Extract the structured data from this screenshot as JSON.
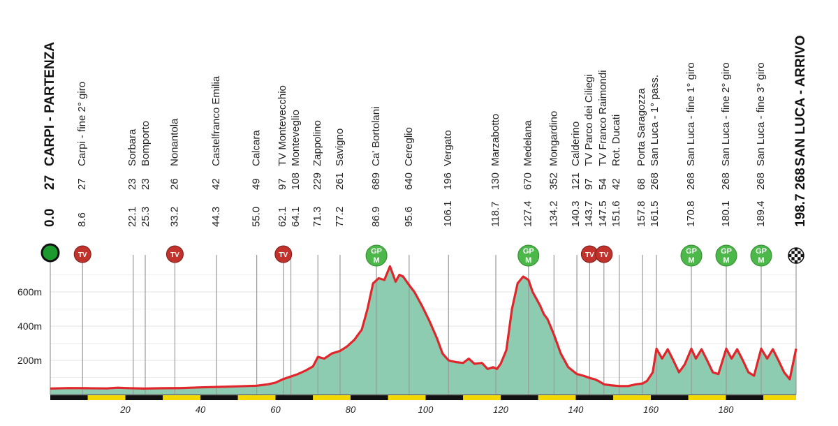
{
  "chart_data": {
    "type": "area",
    "ylabels": [
      "600m",
      "400m",
      "200m"
    ],
    "yticks": [
      600,
      400,
      200
    ],
    "xticks": [
      20,
      40,
      60,
      80,
      100,
      120,
      140,
      160,
      180
    ],
    "xlim": [
      0,
      198.7
    ],
    "ylim": [
      0,
      800
    ],
    "start": {
      "km": "0.0",
      "alt": "27",
      "name": "CARPI - PARTENZA"
    },
    "finish": {
      "km": "198.7",
      "alt": "268",
      "name": "SAN LUCA - ARRIVO"
    },
    "waypoints": [
      {
        "km": 8.6,
        "lines": [
          {
            "km": "8.6",
            "alt": "27",
            "name": "Carpi - fine 2° giro"
          }
        ],
        "badge": "tv"
      },
      {
        "km": 22.1,
        "lines": [
          {
            "km": "22.1",
            "alt": "23",
            "name": "Sorbara"
          },
          {
            "km": "25.3",
            "alt": "23",
            "name": "Bomporto"
          }
        ],
        "badge": null
      },
      {
        "km": 33.2,
        "lines": [
          {
            "km": "33.2",
            "alt": "26",
            "name": "Nonantola"
          }
        ],
        "badge": "tv"
      },
      {
        "km": 44.3,
        "lines": [
          {
            "km": "44.3",
            "alt": "42",
            "name": "Castelfranco Emilia"
          }
        ],
        "badge": null
      },
      {
        "km": 55.0,
        "lines": [
          {
            "km": "55.0",
            "alt": "49",
            "name": "Calcara"
          }
        ],
        "badge": null
      },
      {
        "km": 62.1,
        "lines": [
          {
            "km": "62.1",
            "alt": "97",
            "name": "TV Montevecchio"
          },
          {
            "km": "64.1",
            "alt": "108",
            "name": "Monteveglio"
          }
        ],
        "badge": "tv"
      },
      {
        "km": 71.3,
        "lines": [
          {
            "km": "71.3",
            "alt": "229",
            "name": "Zappolino"
          }
        ],
        "badge": null
      },
      {
        "km": 77.2,
        "lines": [
          {
            "km": "77.2",
            "alt": "261",
            "name": "Savigno"
          }
        ],
        "badge": null
      },
      {
        "km": 86.9,
        "lines": [
          {
            "km": "86.9",
            "alt": "689",
            "name": "Ca' Bortolani"
          }
        ],
        "badge": "gpm"
      },
      {
        "km": 95.6,
        "lines": [
          {
            "km": "95.6",
            "alt": "640",
            "name": "Cereglio"
          }
        ],
        "badge": null
      },
      {
        "km": 106.1,
        "lines": [
          {
            "km": "106.1",
            "alt": "196",
            "name": "Vergato"
          }
        ],
        "badge": null
      },
      {
        "km": 118.7,
        "lines": [
          {
            "km": "118.7",
            "alt": "130",
            "name": "Marzabotto"
          }
        ],
        "badge": null
      },
      {
        "km": 127.4,
        "lines": [
          {
            "km": "127.4",
            "alt": "670",
            "name": "Medelana"
          }
        ],
        "badge": "gpm"
      },
      {
        "km": 134.2,
        "lines": [
          {
            "km": "134.2",
            "alt": "352",
            "name": "Mongardino"
          }
        ],
        "badge": null
      },
      {
        "km": 140.3,
        "lines": [
          {
            "km": "140.3",
            "alt": "121",
            "name": "Calderino"
          },
          {
            "km": "143.7",
            "alt": "97",
            "name": "TV Parco dei Ciliegi"
          }
        ],
        "badge": "tv"
      },
      {
        "km": 147.5,
        "lines": [
          {
            "km": "147.5",
            "alt": "54",
            "name": "TV Franco Raimondi"
          },
          {
            "km": "151.6",
            "alt": "42",
            "name": "Rot. Ducati"
          }
        ],
        "badge": "tv"
      },
      {
        "km": 157.8,
        "lines": [
          {
            "km": "157.8",
            "alt": "68",
            "name": "Porta Saragozza"
          },
          {
            "km": "161.5",
            "alt": "268",
            "name": "San Luca - 1° pass."
          }
        ],
        "badge": null
      },
      {
        "km": 170.8,
        "lines": [
          {
            "km": "170.8",
            "alt": "268",
            "name": "San Luca - fine 1° giro"
          }
        ],
        "badge": "gpm"
      },
      {
        "km": 180.1,
        "lines": [
          {
            "km": "180.1",
            "alt": "268",
            "name": "San Luca - fine 2° giro"
          }
        ],
        "badge": "gpm"
      },
      {
        "km": 189.4,
        "lines": [
          {
            "km": "189.4",
            "alt": "268",
            "name": "San Luca - fine 3° giro"
          }
        ],
        "badge": "gpm"
      }
    ],
    "badge_labels": {
      "tv": "TV",
      "gpm_top": "GP",
      "gpm_bottom": "M"
    },
    "profile": [
      [
        0,
        35
      ],
      [
        5,
        38
      ],
      [
        10,
        37
      ],
      [
        15,
        36
      ],
      [
        18,
        40
      ],
      [
        20,
        38
      ],
      [
        25,
        35
      ],
      [
        30,
        37
      ],
      [
        35,
        38
      ],
      [
        40,
        42
      ],
      [
        45,
        45
      ],
      [
        50,
        48
      ],
      [
        55,
        52
      ],
      [
        58,
        60
      ],
      [
        60,
        70
      ],
      [
        62,
        90
      ],
      [
        64,
        105
      ],
      [
        66,
        120
      ],
      [
        68,
        140
      ],
      [
        70,
        165
      ],
      [
        71.3,
        220
      ],
      [
        73,
        210
      ],
      [
        75,
        240
      ],
      [
        77.2,
        255
      ],
      [
        79,
        280
      ],
      [
        81,
        320
      ],
      [
        83,
        380
      ],
      [
        84.5,
        500
      ],
      [
        86,
        650
      ],
      [
        87.5,
        680
      ],
      [
        89,
        670
      ],
      [
        90.5,
        750
      ],
      [
        92,
        660
      ],
      [
        93,
        700
      ],
      [
        94,
        690
      ],
      [
        95.6,
        640
      ],
      [
        97,
        600
      ],
      [
        99,
        520
      ],
      [
        101,
        430
      ],
      [
        103,
        330
      ],
      [
        104.5,
        240
      ],
      [
        106.1,
        200
      ],
      [
        108,
        190
      ],
      [
        110,
        185
      ],
      [
        111.5,
        210
      ],
      [
        113,
        180
      ],
      [
        115,
        185
      ],
      [
        116.5,
        150
      ],
      [
        118,
        160
      ],
      [
        119,
        150
      ],
      [
        120,
        180
      ],
      [
        121.5,
        260
      ],
      [
        123,
        500
      ],
      [
        124.5,
        650
      ],
      [
        126,
        690
      ],
      [
        127.4,
        670
      ],
      [
        128.5,
        600
      ],
      [
        129.5,
        560
      ],
      [
        130.5,
        520
      ],
      [
        131.5,
        470
      ],
      [
        132.5,
        440
      ],
      [
        134.2,
        350
      ],
      [
        136,
        240
      ],
      [
        138,
        160
      ],
      [
        140.3,
        120
      ],
      [
        142,
        110
      ],
      [
        144,
        95
      ],
      [
        145,
        90
      ],
      [
        146,
        80
      ],
      [
        147.5,
        60
      ],
      [
        149,
        55
      ],
      [
        151.6,
        50
      ],
      [
        154,
        50
      ],
      [
        156,
        60
      ],
      [
        157.8,
        65
      ],
      [
        159,
        80
      ],
      [
        160.5,
        130
      ],
      [
        161.5,
        268
      ],
      [
        163,
        210
      ],
      [
        164.5,
        265
      ],
      [
        166,
        200
      ],
      [
        167.5,
        130
      ],
      [
        169,
        175
      ],
      [
        170.8,
        268
      ],
      [
        172,
        210
      ],
      [
        173.5,
        265
      ],
      [
        175,
        200
      ],
      [
        176.5,
        130
      ],
      [
        178,
        120
      ],
      [
        180.1,
        268
      ],
      [
        181.5,
        210
      ],
      [
        183,
        265
      ],
      [
        184.5,
        200
      ],
      [
        186,
        130
      ],
      [
        187.5,
        110
      ],
      [
        189.4,
        268
      ],
      [
        191,
        210
      ],
      [
        192.5,
        265
      ],
      [
        194,
        200
      ],
      [
        195.5,
        130
      ],
      [
        197,
        90
      ],
      [
        198.7,
        268
      ]
    ]
  },
  "colors": {
    "area": "#8dccb0",
    "line": "#e0262b",
    "tv": "#c0322b",
    "gpm": "#4cb84a",
    "bar_yellow": "#f3d800",
    "bar_black": "#111111"
  }
}
